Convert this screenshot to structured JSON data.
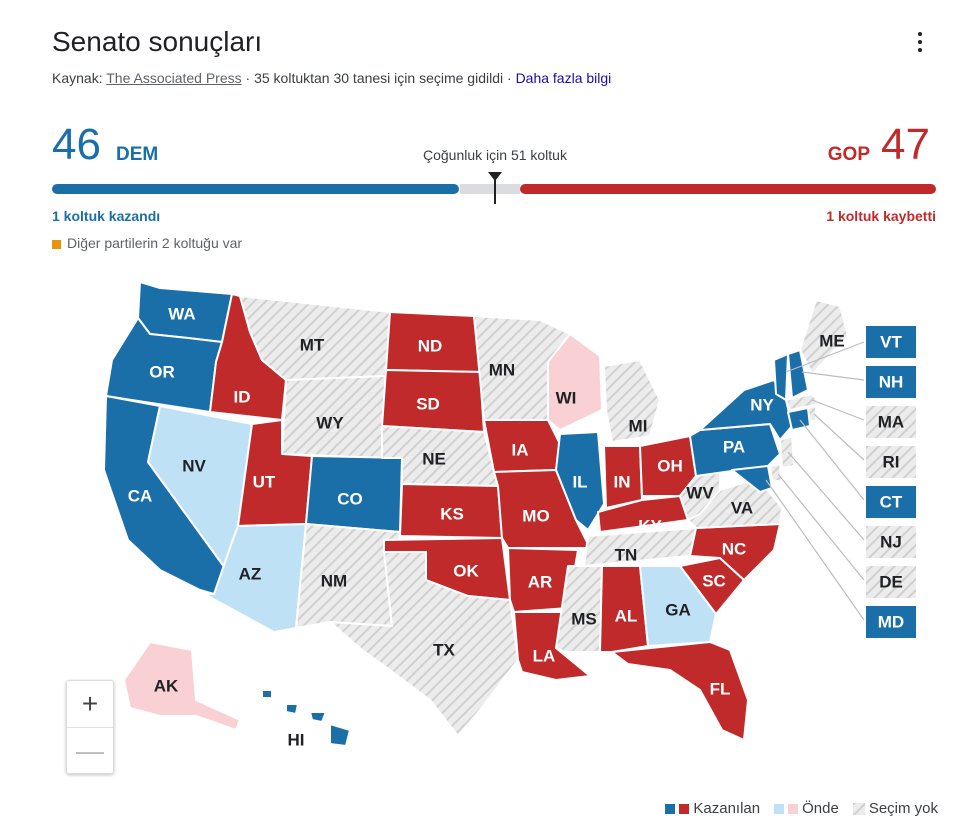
{
  "header": {
    "title": "Senato sonuçları",
    "source_prefix": "Kaynak: ",
    "source_link": "The Associated Press",
    "source_info": " · 35 koltuktan 30 tanesi için seçime gidildi · ",
    "more_info": "Daha fazla bilgi"
  },
  "score": {
    "dem_seats": "46",
    "dem_label": "DEM",
    "gop_seats": "47",
    "gop_label": "GOP",
    "majority_text": "Çoğunluk için 51 koltuk",
    "dem_change": "1 koltuk kazandı",
    "gop_change": "1 koltuk kaybetti",
    "other_parties": "Diğer partilerin 2 koltuğu var"
  },
  "colors": {
    "dem_won": "#1a6fa8",
    "dem_leading": "#bfe1f6",
    "gop_won": "#c02a2a",
    "gop_leading": "#f9d0d3",
    "no_election": "#e8e8e8",
    "other": "#e8930c"
  },
  "map": {
    "states": {
      "WA": "WA",
      "OR": "OR",
      "CA": "CA",
      "NV": "NV",
      "ID": "ID",
      "MT": "MT",
      "WY": "WY",
      "UT": "UT",
      "AZ": "AZ",
      "CO": "CO",
      "NM": "NM",
      "ND": "ND",
      "SD": "SD",
      "NE": "NE",
      "KS": "KS",
      "OK": "OK",
      "TX": "TX",
      "MN": "MN",
      "IA": "IA",
      "MO": "MO",
      "AR": "AR",
      "LA": "LA",
      "WI": "WI",
      "IL": "IL",
      "MI": "MI",
      "IN": "IN",
      "OH": "OH",
      "KY": "KY",
      "TN": "TN",
      "MS": "MS",
      "AL": "AL",
      "GA": "GA",
      "FL": "FL",
      "SC": "SC",
      "NC": "NC",
      "VA": "VA",
      "WV": "WV",
      "PA": "PA",
      "NY": "NY",
      "ME": "ME",
      "AK": "AK",
      "HI": "HI"
    },
    "northeast_boxes": [
      "VT",
      "NH",
      "MA",
      "RI",
      "CT",
      "NJ",
      "DE",
      "MD"
    ]
  },
  "zoom": {
    "plus": "+",
    "minus": "—"
  },
  "legend": {
    "won": "Kazanılan",
    "leading": "Önde",
    "no_election": "Seçim yok"
  }
}
